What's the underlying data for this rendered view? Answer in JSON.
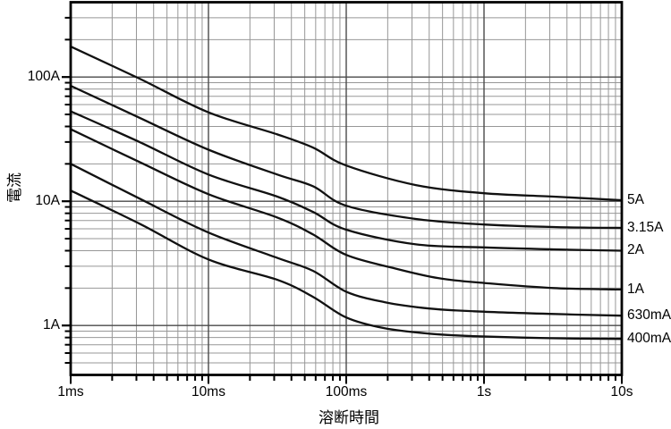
{
  "figure": {
    "kind": "fuse time-current characteristic curves (log-log)"
  },
  "chart_data": {
    "type": "line",
    "title": "",
    "xlabel": "溶断時間",
    "ylabel": "電流",
    "x_scale": "log",
    "y_scale": "log",
    "xlim": [
      0.001,
      10
    ],
    "ylim": [
      0.4,
      400
    ],
    "grid": "full log-log minor and major grid, boxed frame",
    "legend_position": "labels at right end of each curve",
    "x_ticks": [
      {
        "value": 0.001,
        "label": "1ms"
      },
      {
        "value": 0.01,
        "label": "10ms"
      },
      {
        "value": 0.1,
        "label": "100ms"
      },
      {
        "value": 1,
        "label": "1s"
      },
      {
        "value": 10,
        "label": "10s"
      }
    ],
    "y_ticks": [
      {
        "value": 100,
        "label": "100A"
      },
      {
        "value": 10,
        "label": "10A"
      },
      {
        "value": 1,
        "label": "1A"
      }
    ],
    "series": [
      {
        "name": "5A",
        "label": "5A",
        "points": [
          [
            0.001,
            176
          ],
          [
            0.00316,
            97
          ],
          [
            0.01,
            52
          ],
          [
            0.0316,
            34.5
          ],
          [
            0.0575,
            27
          ],
          [
            0.1,
            19.4
          ],
          [
            0.32,
            13.5
          ],
          [
            1,
            11.6
          ],
          [
            3.2,
            10.9
          ],
          [
            10,
            10.2
          ]
        ]
      },
      {
        "name": "3.15A",
        "label": "3.15A",
        "points": [
          [
            0.001,
            85
          ],
          [
            0.00316,
            47
          ],
          [
            0.01,
            26
          ],
          [
            0.0316,
            16.4
          ],
          [
            0.0575,
            13.2
          ],
          [
            0.1,
            9.2
          ],
          [
            0.32,
            7.2
          ],
          [
            1,
            6.5
          ],
          [
            3.2,
            6.2
          ],
          [
            10,
            6.1
          ]
        ]
      },
      {
        "name": "2A",
        "label": "2A",
        "points": [
          [
            0.001,
            53
          ],
          [
            0.00316,
            30
          ],
          [
            0.01,
            16.4
          ],
          [
            0.0316,
            10.9
          ],
          [
            0.0575,
            8.2
          ],
          [
            0.1,
            5.9
          ],
          [
            0.32,
            4.5
          ],
          [
            1,
            4.25
          ],
          [
            3.2,
            4.1
          ],
          [
            10,
            4.0
          ]
        ]
      },
      {
        "name": "1A",
        "label": "1A",
        "points": [
          [
            0.001,
            38
          ],
          [
            0.00316,
            20.7
          ],
          [
            0.01,
            11.4
          ],
          [
            0.0316,
            7.4
          ],
          [
            0.0575,
            5.4
          ],
          [
            0.1,
            3.7
          ],
          [
            0.22,
            2.9
          ],
          [
            0.47,
            2.4
          ],
          [
            1,
            2.2
          ],
          [
            3.2,
            2.0
          ],
          [
            10,
            1.95
          ]
        ]
      },
      {
        "name": "630mA",
        "label": "630mA",
        "points": [
          [
            0.001,
            20
          ],
          [
            0.00316,
            10.5
          ],
          [
            0.01,
            5.6
          ],
          [
            0.0316,
            3.5
          ],
          [
            0.0575,
            2.75
          ],
          [
            0.1,
            1.87
          ],
          [
            0.19,
            1.54
          ],
          [
            0.4,
            1.37
          ],
          [
            0.85,
            1.3
          ],
          [
            3,
            1.24
          ],
          [
            10,
            1.2
          ]
        ]
      },
      {
        "name": "400mA",
        "label": "400mA",
        "points": [
          [
            0.001,
            12.2
          ],
          [
            0.00316,
            6.6
          ],
          [
            0.01,
            3.4
          ],
          [
            0.0316,
            2.33
          ],
          [
            0.0575,
            1.7
          ],
          [
            0.1,
            1.16
          ],
          [
            0.19,
            0.95
          ],
          [
            0.4,
            0.86
          ],
          [
            0.85,
            0.82
          ],
          [
            3,
            0.79
          ],
          [
            10,
            0.78
          ]
        ]
      }
    ]
  },
  "colors": {
    "background": "#ffffff",
    "curve": "#111111",
    "grid_minor": "#979797",
    "grid_major": "#4a4a4a",
    "frame": "#000000",
    "text": "#000000"
  }
}
